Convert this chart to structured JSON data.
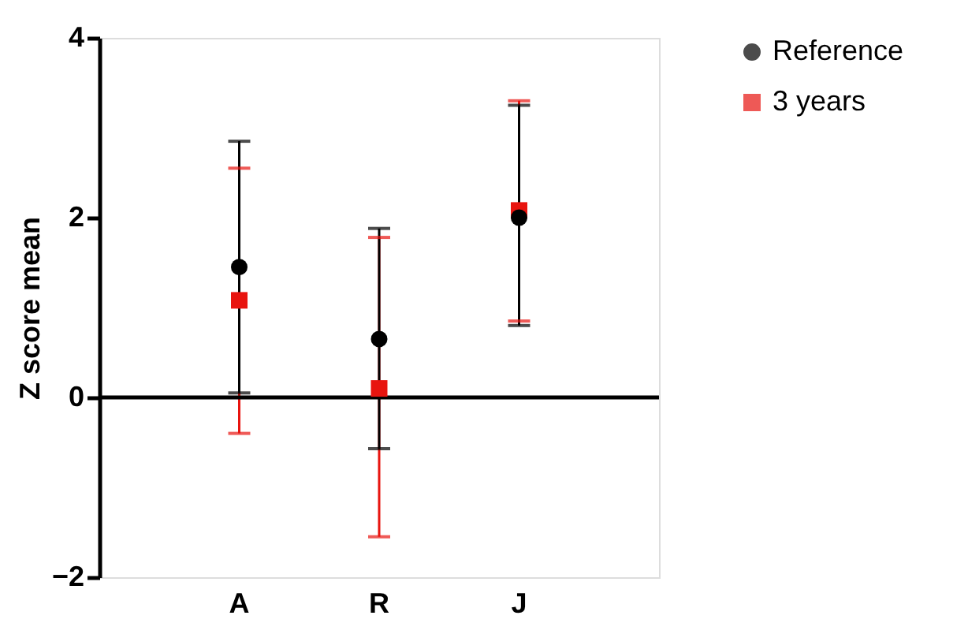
{
  "chart_data": {
    "type": "scatter",
    "ylabel": "Z score mean",
    "categories": [
      "A",
      "R",
      "J"
    ],
    "series": [
      {
        "name": "Reference",
        "color": "#000000",
        "marker": "circle",
        "values": [
          1.45,
          0.65,
          2.0
        ],
        "errors": [
          [
            0.05,
            2.85
          ],
          [
            -0.57,
            1.88
          ],
          [
            0.8,
            3.25
          ]
        ]
      },
      {
        "name": "3 years",
        "color": "#e8140f",
        "marker": "square",
        "values": [
          1.08,
          0.1,
          2.08
        ],
        "errors": [
          [
            -0.4,
            2.55
          ],
          [
            -1.55,
            1.78
          ],
          [
            0.85,
            3.3
          ]
        ]
      }
    ],
    "ylim": [
      -2,
      4
    ],
    "yticks": [
      -2,
      0,
      2,
      4
    ],
    "ref_lines": [
      {
        "axis": "y",
        "value": 0
      }
    ],
    "grid": false,
    "legend": "top right"
  }
}
